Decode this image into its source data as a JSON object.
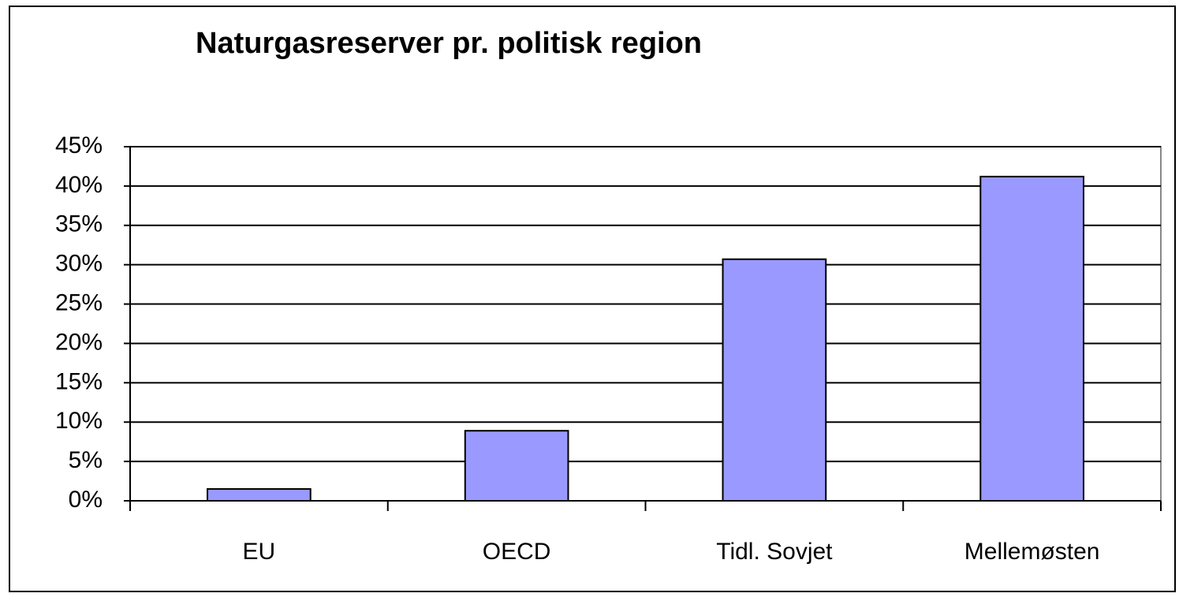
{
  "chart_data": {
    "type": "bar",
    "title": "Naturgasreserver pr. politisk region",
    "categories": [
      "EU",
      "OECD",
      "Tidl. Sovjet",
      "Mellemøsten"
    ],
    "values": [
      1.5,
      8.9,
      30.7,
      41.2
    ],
    "color": "#9999ff",
    "ylim": [
      0,
      45
    ],
    "yticks": [
      {
        "value": 0,
        "label": "0%"
      },
      {
        "value": 5,
        "label": "5%"
      },
      {
        "value": 10,
        "label": "10%"
      },
      {
        "value": 15,
        "label": "15%"
      },
      {
        "value": 20,
        "label": "20%"
      },
      {
        "value": 25,
        "label": "25%"
      },
      {
        "value": 30,
        "label": "30%"
      },
      {
        "value": 35,
        "label": "35%"
      },
      {
        "value": 40,
        "label": "40%"
      },
      {
        "value": 45,
        "label": "45%"
      }
    ],
    "grid": true
  }
}
